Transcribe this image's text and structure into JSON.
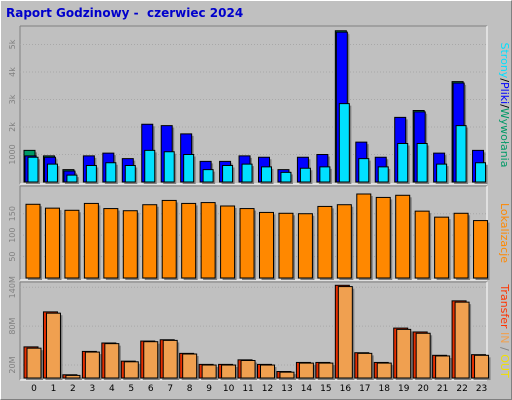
{
  "window_title": "Raport Godzinowy -  czerwiec 2024",
  "colors": {
    "background": "#c0c0c0",
    "panel": "#c0c0c0",
    "hits": "#009966",
    "files": "#0000ff",
    "pages": "#00e0ff",
    "visits": "#ff8800",
    "kbytes": "#ff3300",
    "legend_in": "#f0a050",
    "legend_out": "#f0e000"
  },
  "legend": {
    "top_parts": [
      "Strony",
      "/",
      "Pliki",
      "/",
      "Wywołania"
    ],
    "middle": "Lokalizacje",
    "bottom_parts": [
      "Transfer",
      " IN",
      " / ",
      "OUT"
    ]
  },
  "chart_data": [
    {
      "type": "bar",
      "panel": "top",
      "categories": [
        "0",
        "1",
        "2",
        "3",
        "4",
        "5",
        "6",
        "7",
        "8",
        "9",
        "10",
        "11",
        "12",
        "13",
        "14",
        "15",
        "16",
        "17",
        "18",
        "19",
        "20",
        "21",
        "22",
        "23"
      ],
      "y_ticks": [
        "1000",
        "2k",
        "3k",
        "4k",
        "5k"
      ],
      "ylim": [
        0,
        5600
      ],
      "series": [
        {
          "name": "Wywołania",
          "values": [
            1150,
            950,
            450,
            950,
            1050,
            850,
            2100,
            2050,
            1750,
            750,
            750,
            950,
            900,
            450,
            900,
            1000,
            5500,
            1450,
            900,
            2350,
            2600,
            1050,
            3650,
            1150
          ]
        },
        {
          "name": "Pliki",
          "values": [
            950,
            900,
            400,
            950,
            1050,
            850,
            2100,
            2050,
            1750,
            750,
            750,
            950,
            900,
            450,
            900,
            1000,
            5450,
            1450,
            900,
            2350,
            2550,
            1050,
            3600,
            1150
          ]
        },
        {
          "name": "Strony",
          "values": [
            900,
            650,
            250,
            600,
            700,
            600,
            1150,
            1100,
            1000,
            450,
            600,
            650,
            550,
            350,
            500,
            550,
            2850,
            850,
            550,
            1400,
            1400,
            650,
            2050,
            700
          ]
        }
      ]
    },
    {
      "type": "bar",
      "panel": "middle",
      "categories": [
        "0",
        "1",
        "2",
        "3",
        "4",
        "5",
        "6",
        "7",
        "8",
        "9",
        "10",
        "11",
        "12",
        "13",
        "14",
        "15",
        "16",
        "17",
        "18",
        "19",
        "20",
        "21",
        "22",
        "23"
      ],
      "y_ticks": [
        "50",
        "100",
        "150"
      ],
      "ylim": [
        0,
        210
      ],
      "series": [
        {
          "name": "Lokalizacje",
          "values": [
            172,
            163,
            158,
            174,
            162,
            157,
            171,
            181,
            174,
            176,
            168,
            162,
            153,
            151,
            150,
            167,
            171,
            196,
            188,
            193,
            156,
            142,
            151,
            134
          ]
        }
      ]
    },
    {
      "type": "bar",
      "panel": "bottom",
      "categories": [
        "0",
        "1",
        "2",
        "3",
        "4",
        "5",
        "6",
        "7",
        "8",
        "9",
        "10",
        "11",
        "12",
        "13",
        "14",
        "15",
        "16",
        "17",
        "18",
        "19",
        "20",
        "21",
        "22",
        "23"
      ],
      "y_ticks": [
        "20M",
        "80M",
        "140M"
      ],
      "ylim": [
        0,
        145
      ],
      "series": [
        {
          "name": "IN",
          "values": [
            48,
            102,
            5,
            41,
            54,
            26,
            57,
            59,
            38,
            21,
            21,
            28,
            21,
            10,
            24,
            24,
            143,
            39,
            24,
            77,
            71,
            35,
            119,
            36
          ]
        },
        {
          "name": "OUT",
          "values": [
            46,
            100,
            4,
            40,
            53,
            25,
            56,
            58,
            37,
            20,
            20,
            27,
            20,
            9,
            23,
            23,
            141,
            38,
            23,
            75,
            69,
            34,
            117,
            35
          ]
        }
      ]
    }
  ]
}
